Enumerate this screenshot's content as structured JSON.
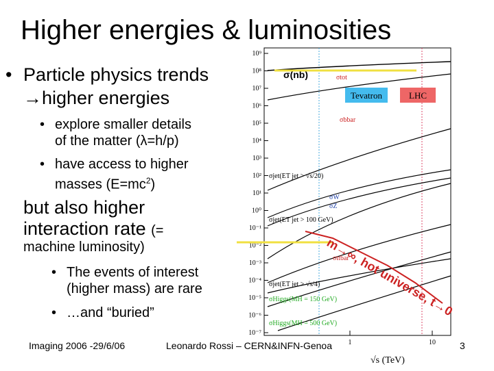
{
  "slide": {
    "title": "Higher energies & luminosities",
    "bullet_main_line1": "Particle physics trends",
    "bullet_main_line2": "higher energies",
    "sub1_line1": "explore smaller details",
    "sub1_line2": "of the matter (λ=h/p)",
    "sub2_line1": "have access to higher",
    "sub2_line2": "masses (E=mc",
    "sub2_sup": "2",
    "sub2_end": ")",
    "but_line1": "but also higher",
    "but_line2": "interaction rate",
    "but_paren": "(=",
    "but_line3": "machine luminosity)",
    "sub3_line1": "The events of interest",
    "sub3_line2": "(higher mass) are rare",
    "sub4": "…and “buried”",
    "footer_left": "Imaging 2006 -29/6/06",
    "footer_center": "Leonardo Rossi – CERN&INFN-Genoa",
    "page_number": "3"
  },
  "annotations": {
    "sigma_nb": "σ(nb)",
    "tevatron": "Tevatron",
    "lhc": "LHC",
    "hot_universe": "m→∞, hot universe, t→0"
  },
  "chart_data": {
    "type": "line",
    "xlabel": "√s (TeV)",
    "x_ticks": [
      "1",
      "10"
    ],
    "y_ticks": [
      "10⁹",
      "10⁸",
      "10⁷",
      "10⁶",
      "10⁵",
      "10⁴",
      "10³",
      "10²",
      "10¹",
      "10⁰",
      "10⁻¹",
      "10⁻²",
      "10⁻³",
      "10⁻⁴",
      "10⁻⁵",
      "10⁻⁶",
      "10⁻⁷"
    ],
    "series_labels": [
      "σtot",
      "σbbar",
      "σjet(ET jet > √s/20)",
      "σW",
      "σZ",
      "σjet(ET jet > 100 GeV)",
      "σttbar",
      "σjet(ET jet > √s/4)",
      "σHiggs(MH = 150 GeV)",
      "σHiggs(MH = 500 GeV)"
    ],
    "colors": {
      "tevatron_box": "#44bbee",
      "lhc_box": "#ee6666",
      "highlight": "#f0e040",
      "arrow": "#cc2222"
    }
  }
}
